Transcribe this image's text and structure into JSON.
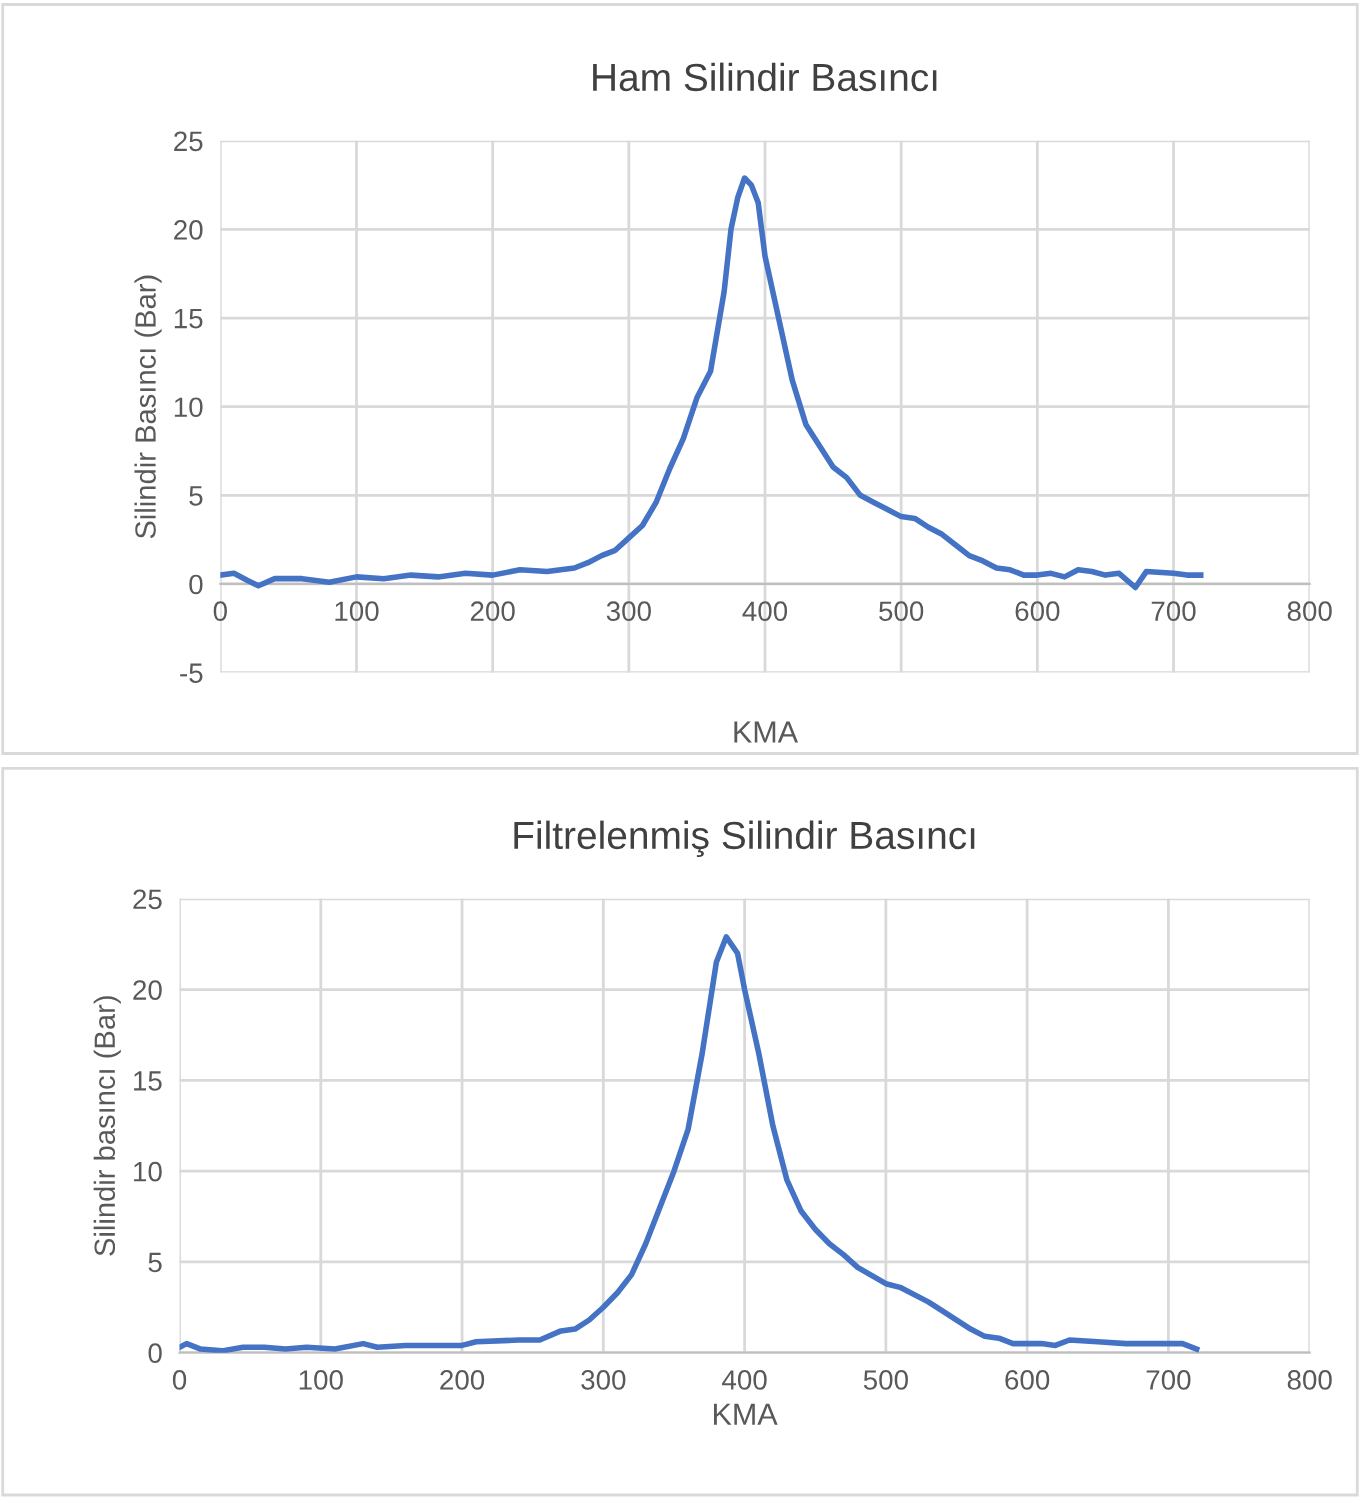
{
  "chart_data": [
    {
      "type": "line",
      "title": "Ham Silindir Basıncı",
      "xlabel": "KMA",
      "ylabel": "Silindir Basıncı (Bar)",
      "xlim": [
        0,
        800
      ],
      "ylim": [
        -5,
        25
      ],
      "xticks": [
        0,
        100,
        200,
        300,
        400,
        500,
        600,
        700,
        800
      ],
      "yticks": [
        -5,
        0,
        5,
        10,
        15,
        20,
        25
      ],
      "grid": true,
      "legend": false,
      "marker": "none",
      "line_style": "solid",
      "series": [
        {
          "color": "#4472c4",
          "x": [
            0,
            10,
            20,
            28,
            40,
            60,
            80,
            100,
            120,
            140,
            160,
            180,
            200,
            220,
            240,
            260,
            270,
            280,
            290,
            300,
            310,
            320,
            330,
            340,
            350,
            360,
            370,
            375,
            380,
            385,
            390,
            395,
            400,
            410,
            420,
            430,
            440,
            450,
            460,
            470,
            480,
            490,
            500,
            510,
            520,
            530,
            540,
            550,
            560,
            570,
            580,
            590,
            600,
            610,
            620,
            630,
            640,
            650,
            660,
            672,
            680,
            700,
            710,
            720
          ],
          "values": [
            0.5,
            0.6,
            0.2,
            -0.1,
            0.3,
            0.3,
            0.1,
            0.4,
            0.3,
            0.5,
            0.4,
            0.6,
            0.5,
            0.8,
            0.7,
            0.9,
            1.2,
            1.6,
            1.9,
            2.6,
            3.3,
            4.6,
            6.5,
            8.2,
            10.5,
            12.0,
            16.5,
            20.0,
            21.8,
            22.9,
            22.5,
            21.5,
            18.5,
            15.0,
            11.5,
            9.0,
            7.8,
            6.6,
            6.0,
            5.0,
            4.6,
            4.2,
            3.8,
            3.7,
            3.2,
            2.8,
            2.2,
            1.6,
            1.3,
            0.9,
            0.8,
            0.5,
            0.5,
            0.6,
            0.4,
            0.8,
            0.7,
            0.5,
            0.6,
            -0.2,
            0.7,
            0.6,
            0.5,
            0.5
          ]
        }
      ]
    },
    {
      "type": "line",
      "title": "Filtrelenmiş Silindir Basıncı",
      "xlabel": "KMA",
      "ylabel": "Silindir basıncı (Bar)",
      "xlim": [
        0,
        800
      ],
      "ylim": [
        0,
        25
      ],
      "xticks": [
        0,
        100,
        200,
        300,
        400,
        500,
        600,
        700,
        800
      ],
      "yticks": [
        0,
        5,
        10,
        15,
        20,
        25
      ],
      "grid": true,
      "legend": false,
      "marker": "none",
      "line_style": "solid",
      "series": [
        {
          "color": "#4472c4",
          "x": [
            0,
            5,
            15,
            30,
            45,
            60,
            75,
            90,
            110,
            130,
            140,
            160,
            180,
            200,
            210,
            240,
            255,
            270,
            280,
            290,
            300,
            310,
            320,
            330,
            340,
            350,
            360,
            370,
            380,
            387,
            395,
            400,
            410,
            420,
            430,
            440,
            450,
            460,
            470,
            480,
            500,
            510,
            530,
            540,
            560,
            570,
            580,
            590,
            610,
            620,
            630,
            650,
            670,
            690,
            710,
            720
          ],
          "values": [
            0.3,
            0.5,
            0.2,
            0.1,
            0.3,
            0.3,
            0.2,
            0.3,
            0.2,
            0.5,
            0.3,
            0.4,
            0.4,
            0.4,
            0.6,
            0.7,
            0.7,
            1.2,
            1.3,
            1.8,
            2.5,
            3.3,
            4.3,
            6.0,
            8.0,
            10.0,
            12.3,
            16.5,
            21.5,
            22.9,
            22.0,
            20.0,
            16.5,
            12.5,
            9.5,
            7.8,
            6.8,
            6.0,
            5.4,
            4.7,
            3.8,
            3.6,
            2.8,
            2.3,
            1.3,
            0.9,
            0.8,
            0.5,
            0.5,
            0.4,
            0.7,
            0.6,
            0.5,
            0.5,
            0.5,
            0.2
          ]
        }
      ]
    }
  ]
}
